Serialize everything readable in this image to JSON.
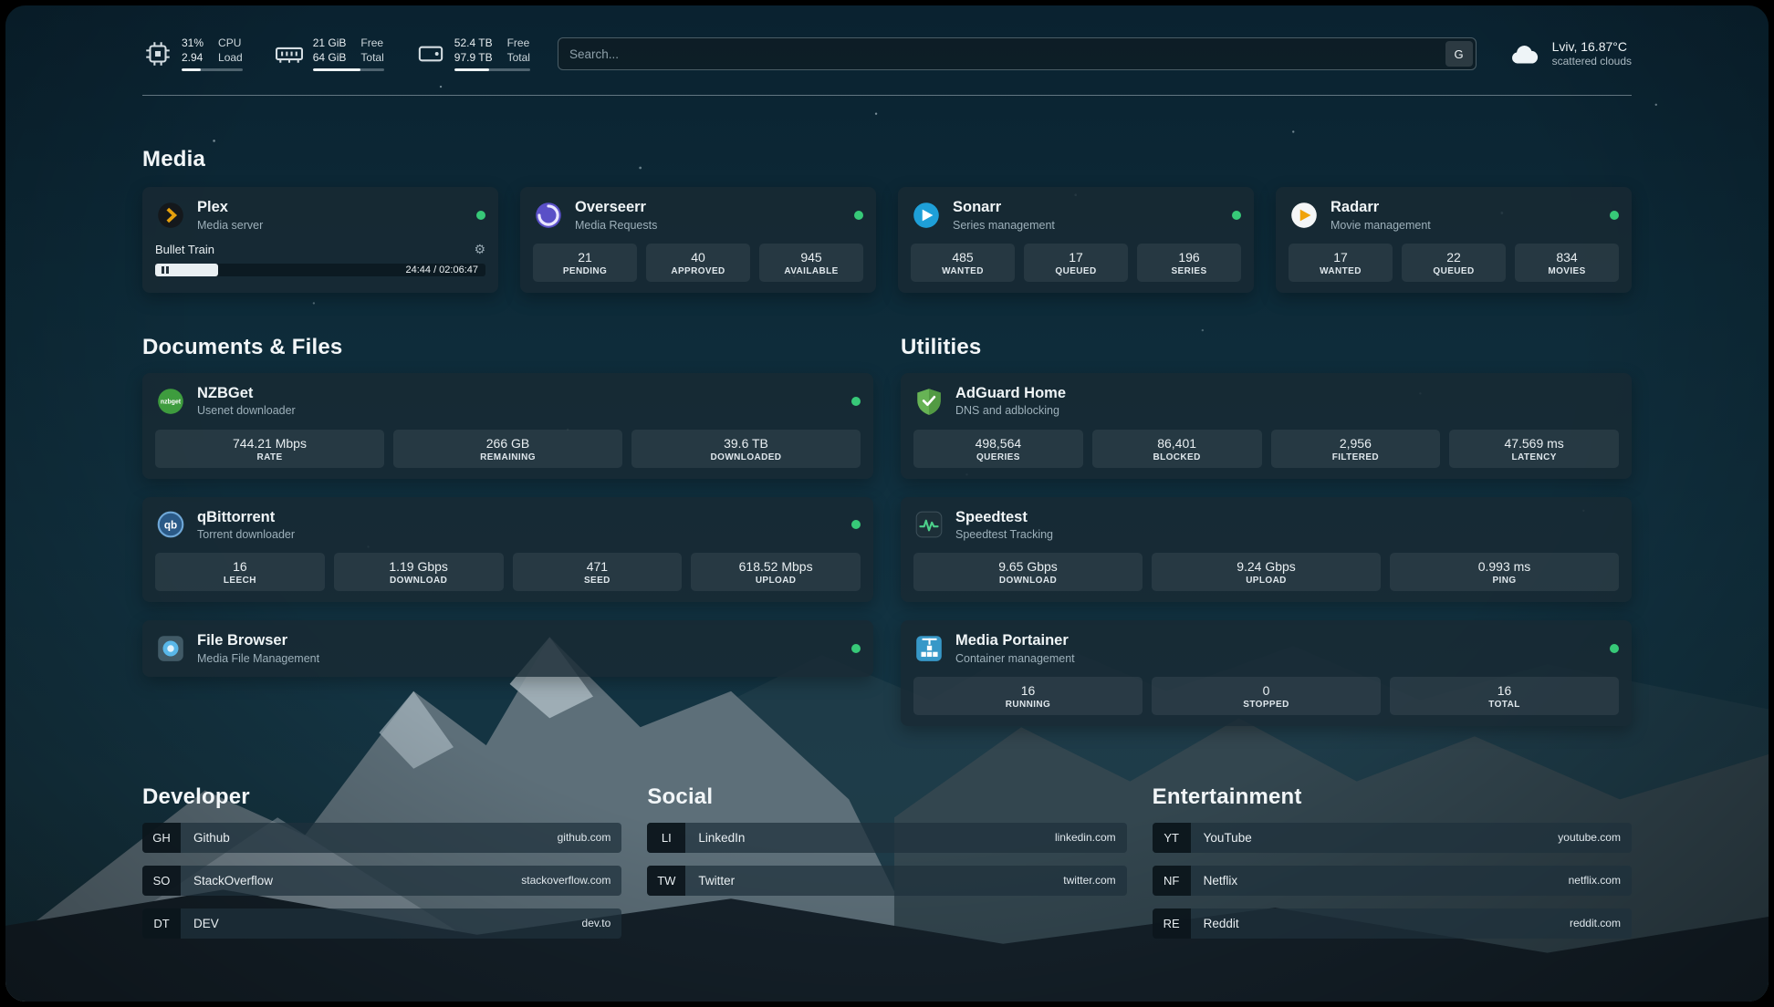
{
  "topbar": {
    "cpu": {
      "value1": "31%",
      "label1": "CPU",
      "value2": "2.94",
      "label2": "Load",
      "pct": 31
    },
    "memory": {
      "value1": "21 GiB",
      "label1": "Free",
      "value2": "64 GiB",
      "label2": "Total",
      "pct": 67
    },
    "disk": {
      "value1": "52.4 TB",
      "label1": "Free",
      "value2": "97.9 TB",
      "label2": "Total",
      "pct": 46
    },
    "search": {
      "placeholder": "Search...",
      "button_label": "G"
    },
    "weather": {
      "location": "Lviv, 16.87°C",
      "condition": "scattered clouds"
    }
  },
  "media": {
    "heading": "Media",
    "plex": {
      "title": "Plex",
      "subtitle": "Media server",
      "now_playing": "Bullet Train",
      "time": "24:44 / 02:06:47",
      "progress_pct": 19
    },
    "overseerr": {
      "title": "Overseerr",
      "subtitle": "Media Requests",
      "stats": [
        {
          "value": "21",
          "label": "PENDING"
        },
        {
          "value": "40",
          "label": "APPROVED"
        },
        {
          "value": "945",
          "label": "AVAILABLE"
        }
      ]
    },
    "sonarr": {
      "title": "Sonarr",
      "subtitle": "Series management",
      "stats": [
        {
          "value": "485",
          "label": "WANTED"
        },
        {
          "value": "17",
          "label": "QUEUED"
        },
        {
          "value": "196",
          "label": "SERIES"
        }
      ]
    },
    "radarr": {
      "title": "Radarr",
      "subtitle": "Movie management",
      "stats": [
        {
          "value": "17",
          "label": "WANTED"
        },
        {
          "value": "22",
          "label": "QUEUED"
        },
        {
          "value": "834",
          "label": "MOVIES"
        }
      ]
    }
  },
  "documents": {
    "heading": "Documents & Files",
    "nzbget": {
      "title": "NZBGet",
      "subtitle": "Usenet downloader",
      "stats": [
        {
          "value": "744.21 Mbps",
          "label": "RATE"
        },
        {
          "value": "266 GB",
          "label": "REMAINING"
        },
        {
          "value": "39.6 TB",
          "label": "DOWNLOADED"
        }
      ]
    },
    "qbittorrent": {
      "title": "qBittorrent",
      "subtitle": "Torrent downloader",
      "stats": [
        {
          "value": "16",
          "label": "LEECH"
        },
        {
          "value": "1.19 Gbps",
          "label": "DOWNLOAD"
        },
        {
          "value": "471",
          "label": "SEED"
        },
        {
          "value": "618.52 Mbps",
          "label": "UPLOAD"
        }
      ]
    },
    "filebrowser": {
      "title": "File Browser",
      "subtitle": "Media File Management"
    }
  },
  "utilities": {
    "heading": "Utilities",
    "adguard": {
      "title": "AdGuard Home",
      "subtitle": "DNS and adblocking",
      "stats": [
        {
          "value": "498,564",
          "label": "QUERIES"
        },
        {
          "value": "86,401",
          "label": "BLOCKED"
        },
        {
          "value": "2,956",
          "label": "FILTERED"
        },
        {
          "value": "47.569 ms",
          "label": "LATENCY"
        }
      ]
    },
    "speedtest": {
      "title": "Speedtest",
      "subtitle": "Speedtest Tracking",
      "stats": [
        {
          "value": "9.65 Gbps",
          "label": "DOWNLOAD"
        },
        {
          "value": "9.24 Gbps",
          "label": "UPLOAD"
        },
        {
          "value": "0.993 ms",
          "label": "PING"
        }
      ]
    },
    "portainer": {
      "title": "Media Portainer",
      "subtitle": "Container management",
      "stats": [
        {
          "value": "16",
          "label": "RUNNING"
        },
        {
          "value": "0",
          "label": "STOPPED"
        },
        {
          "value": "16",
          "label": "TOTAL"
        }
      ]
    }
  },
  "bookmarks": {
    "developer": {
      "heading": "Developer",
      "items": [
        {
          "abbr": "GH",
          "name": "Github",
          "url": "github.com"
        },
        {
          "abbr": "SO",
          "name": "StackOverflow",
          "url": "stackoverflow.com"
        },
        {
          "abbr": "DT",
          "name": "DEV",
          "url": "dev.to"
        }
      ]
    },
    "social": {
      "heading": "Social",
      "items": [
        {
          "abbr": "LI",
          "name": "LinkedIn",
          "url": "linkedin.com"
        },
        {
          "abbr": "TW",
          "name": "Twitter",
          "url": "twitter.com"
        }
      ]
    },
    "entertainment": {
      "heading": "Entertainment",
      "items": [
        {
          "abbr": "YT",
          "name": "YouTube",
          "url": "youtube.com"
        },
        {
          "abbr": "NF",
          "name": "Netflix",
          "url": "netflix.com"
        },
        {
          "abbr": "RE",
          "name": "Reddit",
          "url": "reddit.com"
        }
      ]
    }
  }
}
